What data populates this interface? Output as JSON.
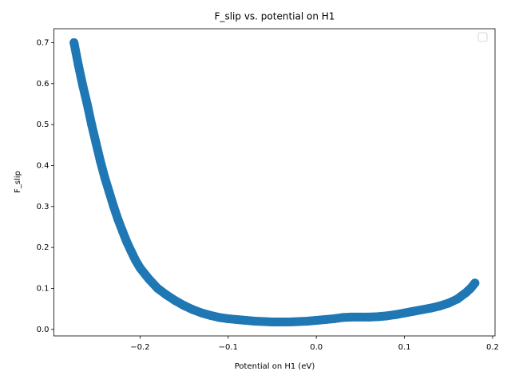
{
  "chart_data": {
    "type": "scatter",
    "title": "F_slip vs. potential on H1",
    "x_label": "Potential on H1 (eV)",
    "y_label": "F_slip",
    "series": [
      {
        "color": "#1f77b4",
        "x": [
          -0.275,
          -0.27,
          -0.265,
          -0.26,
          -0.255,
          -0.25,
          -0.245,
          -0.24,
          -0.235,
          -0.23,
          -0.225,
          -0.22,
          -0.215,
          -0.21,
          -0.205,
          -0.2,
          -0.19,
          -0.18,
          -0.17,
          -0.16,
          -0.15,
          -0.14,
          -0.13,
          -0.12,
          -0.11,
          -0.1,
          -0.09,
          -0.08,
          -0.07,
          -0.06,
          -0.05,
          -0.04,
          -0.03,
          -0.02,
          -0.01,
          0.0,
          0.01,
          0.02,
          0.03,
          0.04,
          0.05,
          0.06,
          0.07,
          0.08,
          0.09,
          0.1,
          0.11,
          0.12,
          0.13,
          0.14,
          0.15,
          0.16,
          0.17,
          0.175,
          0.18
        ],
        "values": [
          0.7,
          0.645,
          0.595,
          0.55,
          0.5,
          0.455,
          0.41,
          0.37,
          0.335,
          0.3,
          0.268,
          0.24,
          0.213,
          0.19,
          0.168,
          0.15,
          0.123,
          0.1,
          0.084,
          0.07,
          0.058,
          0.048,
          0.04,
          0.034,
          0.029,
          0.026,
          0.024,
          0.022,
          0.02,
          0.019,
          0.018,
          0.018,
          0.018,
          0.019,
          0.02,
          0.022,
          0.024,
          0.026,
          0.029,
          0.03,
          0.03,
          0.03,
          0.031,
          0.033,
          0.036,
          0.04,
          0.044,
          0.048,
          0.052,
          0.057,
          0.064,
          0.074,
          0.09,
          0.1,
          0.113
        ]
      }
    ],
    "xlim": [
      -0.2978,
      0.2028
    ],
    "ylim": [
      -0.016,
      0.734
    ],
    "xticks": [
      {
        "value": -0.2,
        "label": "−0.2"
      },
      {
        "value": -0.1,
        "label": "−0.1"
      },
      {
        "value": 0.0,
        "label": "0.0"
      },
      0.1,
      0.2
    ],
    "yticks": [
      {
        "value": 0.0,
        "label": "0.0"
      },
      0.1,
      0.2,
      0.3,
      0.4,
      0.5,
      0.6,
      0.7
    ],
    "grid": false,
    "legend": "upper right"
  }
}
